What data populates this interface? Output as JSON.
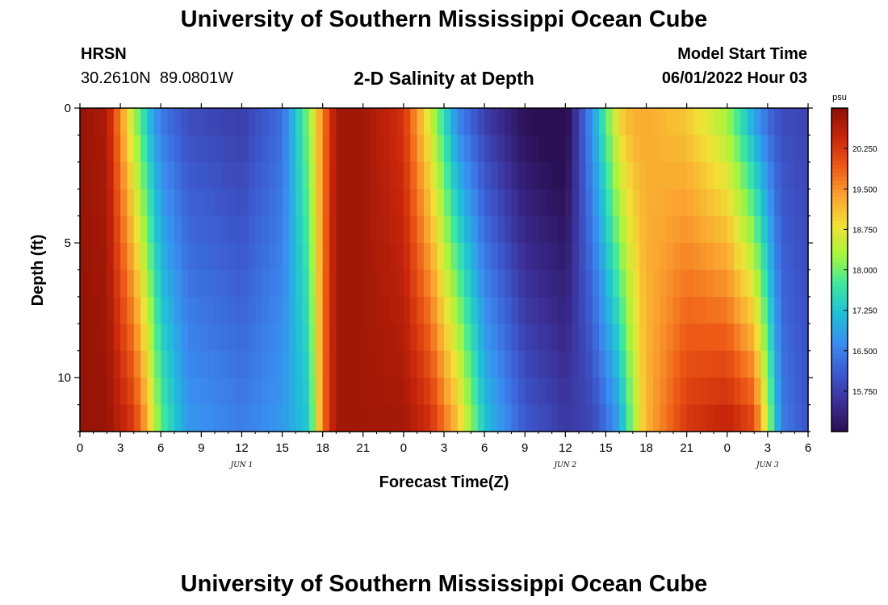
{
  "header": {
    "title": "University of Southern Mississippi Ocean Cube",
    "station": "HRSN",
    "coords": "30.2610N  89.0801W",
    "subtitle": "2-D Salinity at Depth",
    "model_label": "Model Start Time",
    "model_time": "06/01/2022 Hour 03",
    "footer_title": "University of Southern Mississippi Ocean Cube"
  },
  "chart_data": {
    "type": "heatmap",
    "title": "2-D Salinity at Depth",
    "xlabel": "Forecast Time(Z)",
    "ylabel": "Depth (ft)",
    "colorbar_label": "psu",
    "x_tick_labels": [
      "0",
      "3",
      "6",
      "9",
      "12",
      "15",
      "18",
      "21",
      "0",
      "3",
      "6",
      "9",
      "12",
      "15",
      "18",
      "21",
      "0",
      "3",
      "6"
    ],
    "date_labels": [
      {
        "text": "JUN 1",
        "hour": 12
      },
      {
        "text": "JUN 2",
        "hour": 36
      },
      {
        "text": "JUN 3",
        "hour": 51
      }
    ],
    "x_range_hours": [
      0,
      54
    ],
    "y_range_ft": [
      0,
      12
    ],
    "y_tick_labels": [
      "0",
      "5",
      "10"
    ],
    "colorbar_ticks": [
      "15.750",
      "16.500",
      "17.250",
      "18.000",
      "18.750",
      "19.500",
      "20.250"
    ],
    "value_range": [
      15.0,
      21.0
    ],
    "colorscale": [
      "#2a0f52",
      "#3b2f96",
      "#3c5bd0",
      "#3a8cf0",
      "#1fbfd8",
      "#3de8a0",
      "#a6f53c",
      "#f2e136",
      "#fba430",
      "#ee5a16",
      "#c8260b",
      "#8c1005"
    ],
    "grid": false,
    "time_anchors_hours": [
      0,
      2,
      4,
      5,
      6,
      8,
      12,
      15,
      17,
      18,
      19,
      21,
      24,
      26,
      28,
      30,
      33,
      36,
      38,
      40,
      41,
      42,
      45,
      48,
      50,
      51,
      52,
      54
    ],
    "salinity_surface_psu": [
      20.9,
      20.7,
      18.3,
      17.2,
      16.4,
      15.9,
      15.7,
      16.3,
      18.2,
      19.6,
      20.8,
      20.8,
      20.3,
      18.5,
      16.5,
      15.7,
      15.0,
      14.8,
      16.8,
      19.0,
      19.3,
      19.3,
      19.0,
      18.2,
      16.8,
      16.2,
      15.9,
      15.8
    ],
    "salinity_bottom_psu": [
      20.9,
      20.9,
      20.3,
      19.3,
      17.9,
      16.8,
      16.5,
      16.8,
      17.3,
      19.7,
      20.8,
      20.8,
      20.8,
      20.4,
      19.2,
      17.3,
      16.1,
      15.7,
      15.8,
      16.8,
      18.2,
      19.2,
      20.3,
      20.6,
      20.2,
      18.5,
      16.5,
      16.0
    ]
  }
}
